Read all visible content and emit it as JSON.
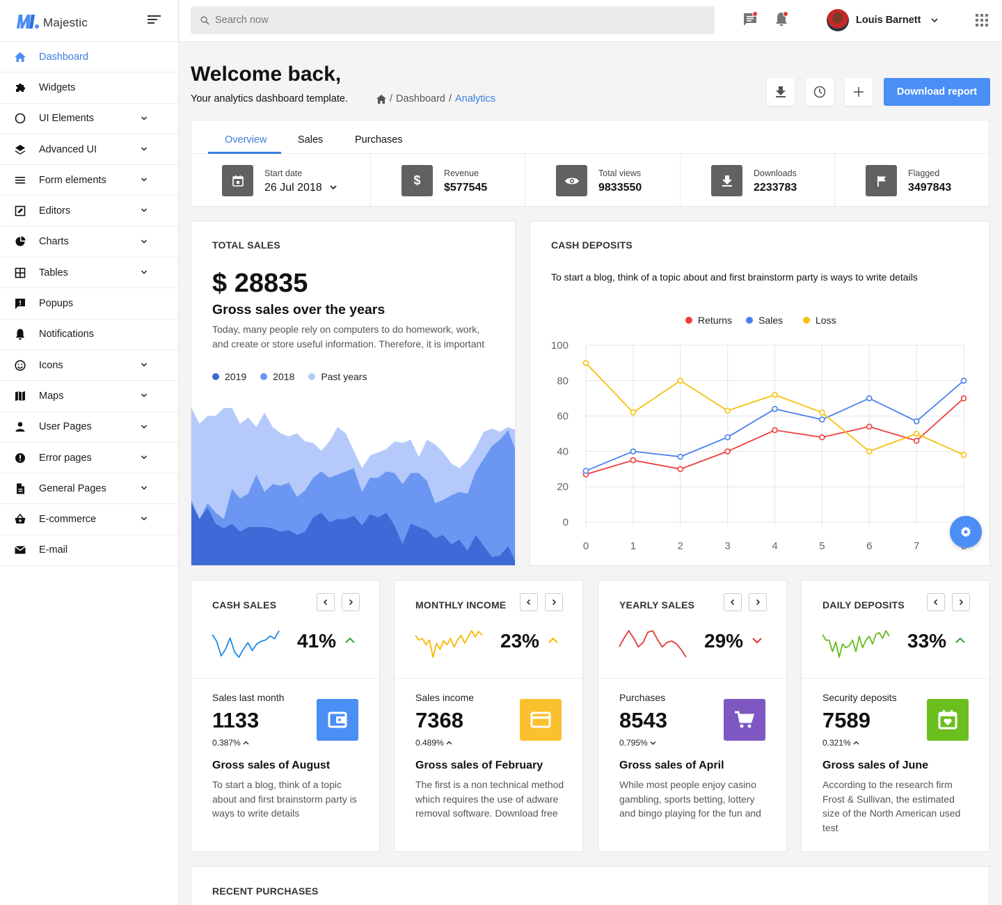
{
  "brand": {
    "name": "Majestic"
  },
  "sidebar": {
    "items": [
      {
        "label": "Dashboard",
        "icon": "home-icon",
        "active": true,
        "has_children": false
      },
      {
        "label": "Widgets",
        "icon": "puzzle-icon",
        "has_children": false
      },
      {
        "label": "UI Elements",
        "icon": "circle-icon",
        "has_children": true
      },
      {
        "label": "Advanced UI",
        "icon": "layers-icon",
        "has_children": true
      },
      {
        "label": "Form elements",
        "icon": "list-icon",
        "has_children": true
      },
      {
        "label": "Editors",
        "icon": "edit-box-icon",
        "has_children": true
      },
      {
        "label": "Charts",
        "icon": "pie-chart-icon",
        "has_children": true
      },
      {
        "label": "Tables",
        "icon": "grid-icon",
        "has_children": true
      },
      {
        "label": "Popups",
        "icon": "alert-message-icon",
        "has_children": false
      },
      {
        "label": "Notifications",
        "icon": "bell-icon",
        "has_children": false
      },
      {
        "label": "Icons",
        "icon": "smiley-icon",
        "has_children": true
      },
      {
        "label": "Maps",
        "icon": "map-icon",
        "has_children": true
      },
      {
        "label": "User Pages",
        "icon": "user-icon",
        "has_children": true
      },
      {
        "label": "Error pages",
        "icon": "error-icon",
        "has_children": true
      },
      {
        "label": "General Pages",
        "icon": "file-icon",
        "has_children": true
      },
      {
        "label": "E-commerce",
        "icon": "basket-icon",
        "has_children": true
      },
      {
        "label": "E-mail",
        "icon": "mail-icon",
        "has_children": false
      }
    ]
  },
  "header": {
    "search_placeholder": "Search now",
    "user_name": "Louis Barnett",
    "colors": {
      "badge": "#e53935"
    }
  },
  "page": {
    "title": "Welcome back,",
    "subtitle": "Your analytics dashboard template.",
    "breadcrumb": [
      "Dashboard",
      "Analytics"
    ],
    "download_label": "Download report"
  },
  "tabs": [
    "Overview",
    "Sales",
    "Purchases"
  ],
  "stats": [
    {
      "label": "Start date",
      "value": "26 Jul 2018",
      "icon": "calendar-icon"
    },
    {
      "label": "Revenue",
      "value": "$577545",
      "icon": "dollar-icon"
    },
    {
      "label": "Total views",
      "value": "9833550",
      "icon": "eye-icon"
    },
    {
      "label": "Downloads",
      "value": "2233783",
      "icon": "download-icon"
    },
    {
      "label": "Flagged",
      "value": "3497843",
      "icon": "flag-icon"
    }
  ],
  "total_sales": {
    "title": "TOTAL SALES",
    "amount": "$ 28835",
    "heading": "Gross sales over the years",
    "description": "Today, many people rely on computers to do homework, work, and create or store useful information. Therefore, it is important",
    "legend": [
      {
        "label": "2019",
        "color": "#3d6ad6"
      },
      {
        "label": "2018",
        "color": "#6b97f2"
      },
      {
        "label": "Past years",
        "color": "#b5cafa"
      }
    ]
  },
  "cash_deposits": {
    "title": "CASH DEPOSITS",
    "description": "To start a blog, think of a topic about and first brainstorm party is ways to write details"
  },
  "chart_data": [
    {
      "type": "line",
      "x": [
        0,
        1,
        2,
        3,
        4,
        5,
        6,
        7,
        8
      ],
      "ylim": [
        0,
        100
      ],
      "yticks": [
        0,
        20,
        40,
        60,
        80,
        100
      ],
      "legend_position": "top-center",
      "grid": true,
      "series": [
        {
          "name": "Returns",
          "color": "#f03e3e",
          "values": [
            27,
            35,
            30,
            40,
            52,
            48,
            54,
            46,
            70
          ]
        },
        {
          "name": "Sales",
          "color": "#4a7ff0",
          "values": [
            29,
            40,
            37,
            48,
            64,
            58,
            70,
            57,
            80
          ]
        },
        {
          "name": "Loss",
          "color": "#f5c10c",
          "values": [
            90,
            62,
            80,
            63,
            72,
            62,
            40,
            50,
            38
          ]
        }
      ]
    },
    {
      "type": "area",
      "x": [
        0,
        1,
        2,
        3,
        4,
        5,
        6,
        7,
        8,
        9,
        10,
        11,
        12,
        13,
        14,
        15,
        16,
        17,
        18,
        19,
        20,
        21,
        22,
        23,
        24,
        25,
        26,
        27,
        28,
        29,
        30,
        31,
        32,
        33,
        34,
        35,
        36,
        37,
        38,
        39,
        40
      ],
      "series": [
        {
          "name": "Past years",
          "color": "#b5cafa",
          "values": [
            100,
            90,
            95,
            95,
            100,
            100,
            90,
            94,
            88,
            97,
            88,
            84,
            82,
            84,
            79,
            78,
            73,
            79,
            88,
            84,
            73,
            62,
            70,
            72,
            74,
            79,
            78,
            80,
            69,
            80,
            77,
            72,
            65,
            62,
            67,
            75,
            85,
            87,
            85,
            88,
            86
          ]
        },
        {
          "name": "2018",
          "color": "#6b97f2",
          "values": [
            42,
            30,
            40,
            34,
            30,
            49,
            43,
            46,
            58,
            47,
            52,
            51,
            53,
            44,
            48,
            56,
            60,
            56,
            58,
            60,
            62,
            47,
            56,
            56,
            60,
            59,
            52,
            59,
            59,
            54,
            40,
            42,
            45,
            47,
            46,
            60,
            68,
            76,
            80,
            86,
            72
          ]
        },
        {
          "name": "2019",
          "color": "#3d6ad6",
          "values": [
            40,
            30,
            37,
            27,
            24,
            27,
            22,
            25,
            25,
            25,
            24,
            22,
            23,
            20,
            22,
            31,
            34,
            28,
            30,
            30,
            32,
            26,
            33,
            31,
            34,
            26,
            14,
            27,
            25,
            23,
            18,
            20,
            14,
            17,
            10,
            20,
            13,
            6,
            7,
            13,
            2
          ]
        }
      ]
    }
  ],
  "mini_cards": [
    {
      "title": "CASH SALES",
      "percent": "41%",
      "trend": "up",
      "trend_color": "#43a047",
      "spark_color": "#1e88e5",
      "spark": [
        40,
        30,
        8,
        18,
        35,
        14,
        6,
        18,
        28,
        16,
        26,
        30,
        32,
        38,
        34,
        46
      ],
      "label": "Sales last month",
      "value": "1133",
      "change": "0.387%",
      "change_dir": "up",
      "icon": "wallet-icon",
      "icon_color": "#4b8ef5",
      "heading": "Gross sales of August",
      "text": "To start a blog, think of a topic about and first brainstorm party is ways to write details"
    },
    {
      "title": "MONTHLY INCOME",
      "percent": "23%",
      "trend": "up",
      "trend_color": "#f5b800",
      "spark_color": "#f5b800",
      "spark": [
        40,
        34,
        36,
        28,
        34,
        12,
        30,
        22,
        33,
        28,
        36,
        25,
        34,
        40,
        30,
        38,
        46,
        38,
        45,
        40
      ],
      "label": "Sales income",
      "value": "7368",
      "change": "0.489%",
      "change_dir": "up",
      "icon": "card-icon",
      "icon_color": "#fbc02d",
      "heading": "Gross sales of February",
      "text": "The first is a non technical method which requires the use of adware removal software. Download free"
    },
    {
      "title": "YEARLY SALES",
      "percent": "29%",
      "trend": "down",
      "trend_color": "#e53935",
      "spark_color": "#e53935",
      "spark": [
        18,
        30,
        40,
        30,
        18,
        24,
        38,
        40,
        28,
        18,
        24,
        26,
        22,
        14,
        4
      ],
      "label": "Purchases",
      "value": "8543",
      "change": "0.795%",
      "change_dir": "down",
      "icon": "cart-icon",
      "icon_color": "#7e57c2",
      "heading": "Gross sales of April",
      "text": "While most people enjoy casino gambling, sports betting, lottery and bingo playing for the fun and"
    },
    {
      "title": "DAILY DEPOSITS",
      "percent": "33%",
      "trend": "up",
      "trend_color": "#43a047",
      "spark_color": "#66bb1a",
      "spark": [
        36,
        30,
        30,
        18,
        28,
        12,
        26,
        22,
        24,
        30,
        18,
        34,
        22,
        30,
        34,
        26,
        36,
        38,
        32,
        40,
        34
      ],
      "label": "Security deposits",
      "value": "7589",
      "change": "0.321%",
      "change_dir": "up",
      "icon": "calendar-heart-icon",
      "icon_color": "#6abf1f",
      "heading": "Gross sales of June",
      "text": "According to the research firm Frost & Sullivan, the estimated size of the North American used test"
    }
  ],
  "recent": {
    "title": "RECENT PURCHASES"
  }
}
